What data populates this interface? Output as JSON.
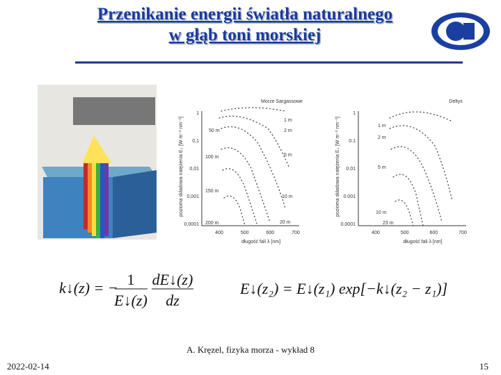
{
  "header": {
    "title": [
      "Przenikanie energii światła naturalnego",
      "w głąb toni morskiej"
    ]
  },
  "plots": [
    {
      "title": "Morze Sargassowe",
      "ylabel": "pozioma składowa natężenia E↓ [W m⁻² nm⁻¹]",
      "yticks": [
        "1",
        "0,1",
        "0,01",
        "0,001",
        "0,0001"
      ],
      "xticks": [
        "400",
        "500",
        "600",
        "700"
      ],
      "xlabel": "długość fali λ [nm]",
      "depths": [
        "50 m",
        "1 m",
        "2 m",
        "100 m",
        "5 m",
        "150 m",
        "10 m",
        "200 m",
        "20 m"
      ]
    },
    {
      "title": "Deltys",
      "ylabel": "pozioma składowa natężenia E↓ [W m⁻² nm⁻¹]",
      "yticks": [
        "1",
        "0.1",
        "0.01",
        "0.001",
        "0.0001"
      ],
      "xticks": [
        "400",
        "500",
        "600",
        "700"
      ],
      "xlabel": "długość fali λ [nm]",
      "depths": [
        "1 m",
        "2 m",
        "5 m",
        "10 m",
        "23 m"
      ]
    }
  ],
  "formulas": {
    "left": {
      "lhs": "k↓(z) = −",
      "num1": "1",
      "den1": "E↓(z)",
      "num2": "dE↓(z)",
      "den2": "dz"
    },
    "right": "E↓(z₂) = E↓(z₁) exp[−k↓(z₂ − z₁)]"
  },
  "footer": {
    "author": "A. Kręzel, fizyka morza - wykład 8",
    "date": "2022-02-14",
    "page": "15"
  }
}
